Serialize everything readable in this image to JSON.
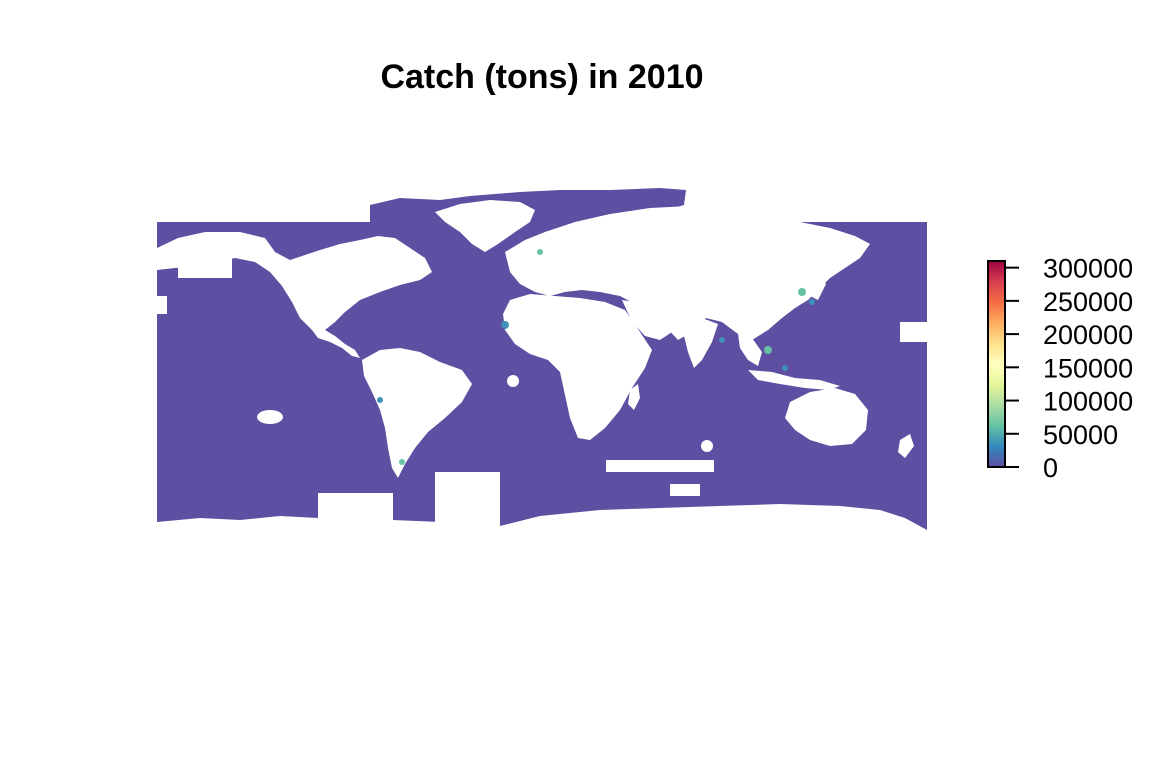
{
  "title": "Catch (tons) in 2010",
  "colors": {
    "ocean": "#5e4fa2",
    "land": "#ffffff",
    "hotspot": "#3f8fb8",
    "hotspot_light": "#66c2a5"
  },
  "legend": {
    "palette": [
      "#5e4fa2",
      "#3288bd",
      "#66c2a5",
      "#abdda4",
      "#e6f598",
      "#ffffbf",
      "#fee08b",
      "#fdae61",
      "#f46d43",
      "#d53e4f",
      "#9e0142"
    ],
    "ticks": [
      {
        "value": 300000,
        "label": "300000"
      },
      {
        "value": 250000,
        "label": "250000"
      },
      {
        "value": 200000,
        "label": "200000"
      },
      {
        "value": 150000,
        "label": "150000"
      },
      {
        "value": 100000,
        "label": "100000"
      },
      {
        "value": 50000,
        "label": "50000"
      },
      {
        "value": 0,
        "label": "0"
      }
    ],
    "min": 0,
    "max": 310000
  }
}
